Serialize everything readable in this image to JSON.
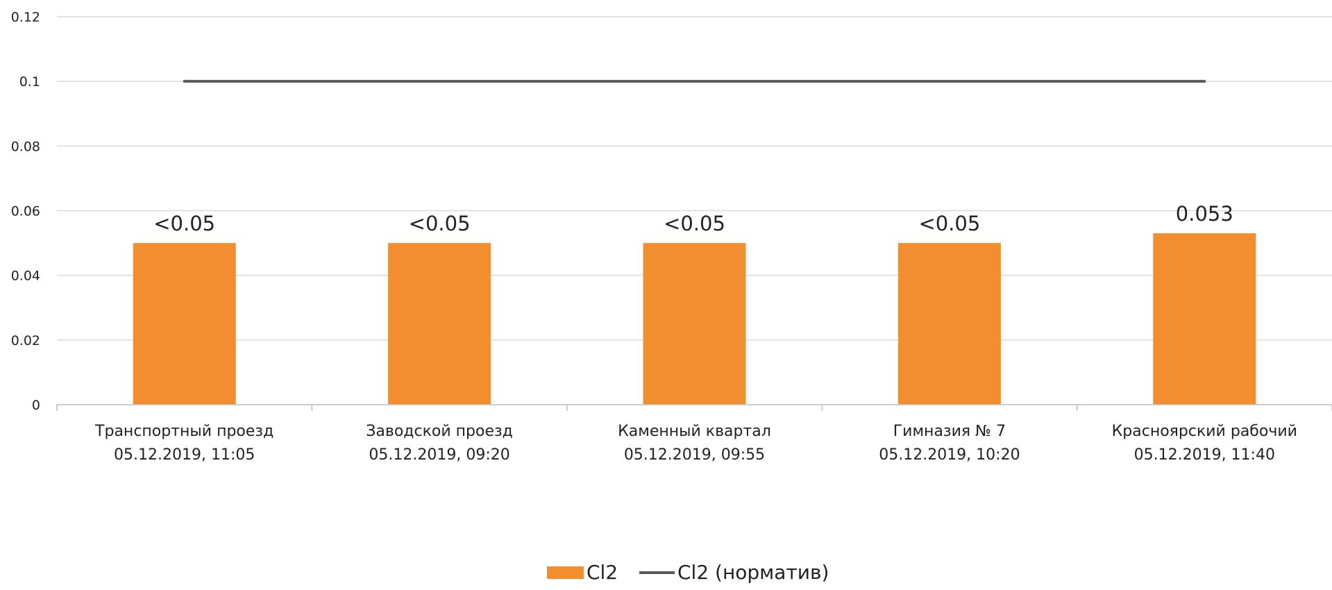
{
  "chart_data": {
    "type": "bar",
    "title": "",
    "xlabel": "",
    "ylabel": "",
    "ylim": [
      0,
      0.12
    ],
    "yticks": [
      "0",
      "0.02",
      "0.04",
      "0.06",
      "0.08",
      "0.1",
      "0.12"
    ],
    "grid": true,
    "legend_position": "bottom",
    "categories": [
      [
        "Транспортный проезд",
        "05.12.2019, 11:05"
      ],
      [
        "Заводской проезд",
        "05.12.2019, 09:20"
      ],
      [
        "Каменный квартал",
        "05.12.2019, 09:55"
      ],
      [
        "Гимназия № 7",
        "05.12.2019, 10:20"
      ],
      [
        "Красноярский рабочий",
        "05.12.2019, 11:40"
      ]
    ],
    "series": [
      {
        "name": "Cl2",
        "type": "bar",
        "color": "#F28E30",
        "values": [
          0.05,
          0.05,
          0.05,
          0.05,
          0.053
        ],
        "data_labels": [
          "<0.05",
          "<0.05",
          "<0.05",
          "<0.05",
          "0.053"
        ]
      },
      {
        "name": "Cl2 (норматив)",
        "type": "line",
        "color": "#595959",
        "values": [
          0.1,
          0.1,
          0.1,
          0.1,
          0.1
        ]
      }
    ]
  }
}
